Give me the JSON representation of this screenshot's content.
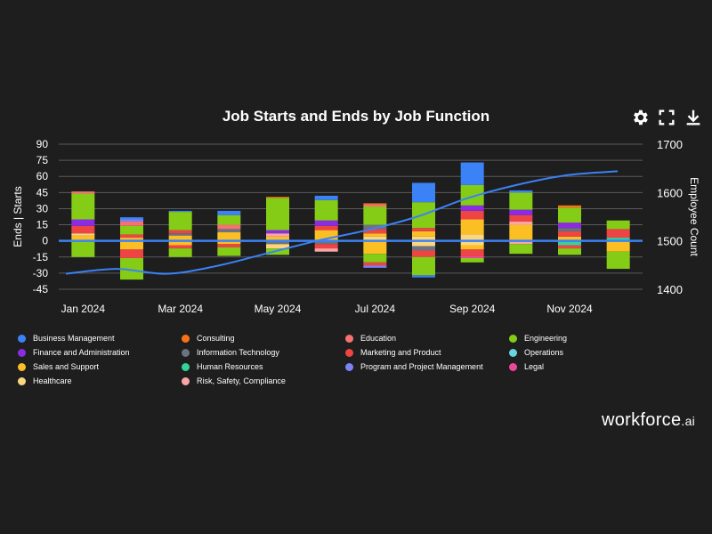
{
  "title": "Job Starts and Ends by Job Function",
  "toolbar": {
    "icons": [
      "gear-icon",
      "fullscreen-icon",
      "download-icon"
    ]
  },
  "brand": {
    "name": "workforce",
    "suffix": ".ai"
  },
  "colors": {
    "Business Management": "#3b82f6",
    "Consulting": "#f97316",
    "Education": "#f87171",
    "Engineering": "#84cc16",
    "Finance and Administration": "#8b2be2",
    "Information Technology": "#6b7280",
    "Marketing and Product": "#ef4444",
    "Operations": "#67d5e0",
    "Sales and Support": "#fbbf24",
    "Human Resources": "#34d399",
    "Program and Project Management": "#7c83f7",
    "Legal": "#ec4899",
    "Healthcare": "#fcd581",
    "Risk, Safety, Compliance": "#fca5a5"
  },
  "legend": [
    "Business Management",
    "Consulting",
    "Education",
    "Engineering",
    "Finance and Administration",
    "Information Technology",
    "Marketing and Product",
    "Operations",
    "Sales and Support",
    "Human Resources",
    "Program and Project Management",
    "Legal",
    "Healthcare",
    "Risk, Safety, Compliance"
  ],
  "chart_data": {
    "type": "bar",
    "stacked": true,
    "title": "Job Starts and Ends by Job Function",
    "ylabel": "Ends | Starts",
    "y2label": "Employee Count",
    "ylim": [
      -45,
      90
    ],
    "yticks": [
      90,
      75,
      60,
      45,
      30,
      15,
      0,
      -15,
      -30,
      -45
    ],
    "y2lim": [
      1400,
      1700
    ],
    "y2ticks": [
      1700,
      1600,
      1500,
      1400
    ],
    "categories": [
      "Jan 2024",
      "Feb 2024",
      "Mar 2024",
      "Apr 2024",
      "May 2024",
      "Jun 2024",
      "Jul 2024",
      "Aug 2024",
      "Sep 2024",
      "Oct 2024",
      "Nov 2024",
      "Dec 2024"
    ],
    "xticklabels": [
      "Jan 2024",
      "",
      "Mar 2024",
      "",
      "May 2024",
      "",
      "Jul 2024",
      "",
      "Sep 2024",
      "",
      "Nov 2024",
      ""
    ],
    "starts": [
      [
        [
          "Sales and Support",
          5
        ],
        [
          "Healthcare",
          2
        ],
        [
          "Marketing and Product",
          7
        ],
        [
          "Finance and Administration",
          6
        ],
        [
          "Engineering",
          24
        ],
        [
          "Education",
          2
        ]
      ],
      [
        [
          "Sales and Support",
          3
        ],
        [
          "Marketing and Product",
          3
        ],
        [
          "Engineering",
          8
        ],
        [
          "Education",
          4
        ],
        [
          "Program and Project Management",
          2
        ],
        [
          "Business Management",
          2
        ]
      ],
      [
        [
          "Sales and Support",
          5
        ],
        [
          "Information Technology",
          2
        ],
        [
          "Marketing and Product",
          3
        ],
        [
          "Engineering",
          17
        ],
        [
          "Business Management",
          1
        ]
      ],
      [
        [
          "Sales and Support",
          8
        ],
        [
          "Information Technology",
          3
        ],
        [
          "Education",
          4
        ],
        [
          "Engineering",
          9
        ],
        [
          "Business Management",
          4
        ]
      ],
      [
        [
          "Sales and Support",
          4
        ],
        [
          "Risk, Safety, Compliance",
          3
        ],
        [
          "Finance and Administration",
          3
        ],
        [
          "Engineering",
          30
        ],
        [
          "Consulting",
          1
        ]
      ],
      [
        [
          "Sales and Support",
          10
        ],
        [
          "Marketing and Product",
          4
        ],
        [
          "Finance and Administration",
          5
        ],
        [
          "Engineering",
          19
        ],
        [
          "Business Management",
          4
        ]
      ],
      [
        [
          "Healthcare",
          4
        ],
        [
          "Sales and Support",
          3
        ],
        [
          "Marketing and Product",
          4
        ],
        [
          "Information Technology",
          4
        ],
        [
          "Engineering",
          17
        ],
        [
          "Education",
          2
        ],
        [
          "Consulting",
          1
        ]
      ],
      [
        [
          "Healthcare",
          4
        ],
        [
          "Sales and Support",
          5
        ],
        [
          "Marketing and Product",
          3
        ],
        [
          "Engineering",
          24
        ],
        [
          "Business Management",
          18
        ]
      ],
      [
        [
          "Healthcare",
          6
        ],
        [
          "Sales and Support",
          14
        ],
        [
          "Marketing and Product",
          8
        ],
        [
          "Finance and Administration",
          5
        ],
        [
          "Engineering",
          19
        ],
        [
          "Business Management",
          21
        ]
      ],
      [
        [
          "Sales and Support",
          15
        ],
        [
          "Risk, Safety, Compliance",
          3
        ],
        [
          "Marketing and Product",
          6
        ],
        [
          "Finance and Administration",
          5
        ],
        [
          "Engineering",
          16
        ],
        [
          "Business Management",
          2
        ]
      ],
      [
        [
          "Sales and Support",
          4
        ],
        [
          "Marketing and Product",
          5
        ],
        [
          "Information Technology",
          3
        ],
        [
          "Finance and Administration",
          5
        ],
        [
          "Engineering",
          14
        ],
        [
          "Consulting",
          2
        ]
      ],
      [
        [
          "Human Resources",
          3
        ],
        [
          "Marketing and Product",
          8
        ],
        [
          "Engineering",
          8
        ]
      ]
    ],
    "ends": [
      [
        [
          "Engineering",
          15
        ]
      ],
      [
        [
          "Sales and Support",
          8
        ],
        [
          "Marketing and Product",
          8
        ],
        [
          "Engineering",
          20
        ]
      ],
      [
        [
          "Sales and Support",
          4
        ],
        [
          "Marketing and Product",
          3
        ],
        [
          "Engineering",
          8
        ]
      ],
      [
        [
          "Sales and Support",
          3
        ],
        [
          "Marketing and Product",
          3
        ],
        [
          "Engineering",
          8
        ]
      ],
      [
        [
          "Information Technology",
          3
        ],
        [
          "Healthcare",
          4
        ],
        [
          "Engineering",
          6
        ]
      ],
      [
        [
          "Information Technology",
          3
        ],
        [
          "Marketing and Product",
          4
        ],
        [
          "Risk, Safety, Compliance",
          3
        ]
      ],
      [
        [
          "Sales and Support",
          12
        ],
        [
          "Engineering",
          8
        ],
        [
          "Marketing and Product",
          3
        ],
        [
          "Program and Project Management",
          2
        ]
      ],
      [
        [
          "Healthcare",
          5
        ],
        [
          "Information Technology",
          4
        ],
        [
          "Marketing and Product",
          6
        ],
        [
          "Engineering",
          17
        ],
        [
          "Business Management",
          2
        ]
      ],
      [
        [
          "Healthcare",
          4
        ],
        [
          "Sales and Support",
          4
        ],
        [
          "Marketing and Product",
          6
        ],
        [
          "Legal",
          2
        ],
        [
          "Engineering",
          4
        ]
      ],
      [
        [
          "Risk, Safety, Compliance",
          3
        ],
        [
          "Engineering",
          9
        ]
      ],
      [
        [
          "Human Resources",
          4
        ],
        [
          "Marketing and Product",
          3
        ],
        [
          "Engineering",
          6
        ]
      ],
      [
        [
          "Sales and Support",
          10
        ],
        [
          "Engineering",
          16
        ]
      ]
    ],
    "employee_count": {
      "x": [
        "Jan 2024",
        "Feb 2024",
        "Mar 2024",
        "Apr 2024",
        "May 2024",
        "Jun 2024",
        "Jul 2024",
        "Aug 2024",
        "Sep 2024",
        "Oct 2024",
        "Nov 2024",
        "Dec 2024"
      ],
      "values": [
        1432,
        1442,
        1432,
        1448,
        1474,
        1500,
        1522,
        1550,
        1588,
        1616,
        1636,
        1644
      ],
      "color": "#3b82f6"
    },
    "zero_line_color": "#3b82f6"
  }
}
